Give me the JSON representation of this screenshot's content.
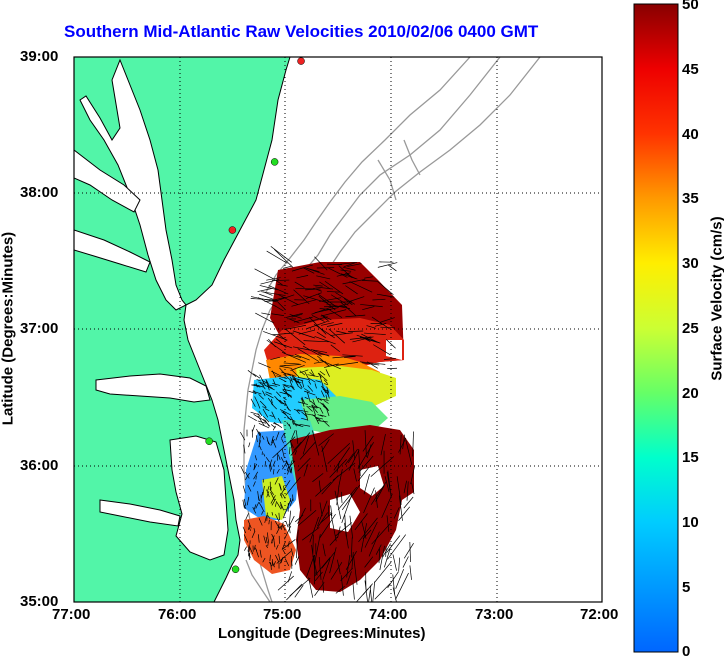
{
  "title": "Southern Mid-Atlantic Raw Velocities 2010/02/06 0400 GMT",
  "axes": {
    "xlabel": "Longitude (Degrees:Minutes)",
    "ylabel": "Latitude (Degrees:Minutes)",
    "x_ticks": [
      "77:00",
      "76:00",
      "75:00",
      "74:00",
      "73:00",
      "72:00"
    ],
    "y_ticks": [
      "39:00",
      "38:00",
      "37:00",
      "36:00",
      "35:00"
    ]
  },
  "colorbar": {
    "label": "Surface Velocity (cm/s)",
    "ticks": [
      "50",
      "45",
      "40",
      "35",
      "30",
      "25",
      "20",
      "15",
      "10",
      "5",
      "0"
    ],
    "range": [
      0,
      50
    ]
  },
  "colors": {
    "land": "#52f5a8",
    "coastline": "#000000",
    "bathymetry": "#999999",
    "title": "#0000ff",
    "grid": "#000000",
    "station_active": "#22dd22",
    "station_inactive": "#ee2222"
  },
  "map_extent": {
    "lon": [
      -77,
      -72
    ],
    "lat": [
      35,
      39
    ]
  },
  "stations": [
    {
      "lon": -74.85,
      "lat": 38.97,
      "status": "inactive"
    },
    {
      "lon": -75.1,
      "lat": 38.23,
      "status": "active"
    },
    {
      "lon": -75.5,
      "lat": 37.73,
      "status": "inactive"
    },
    {
      "lon": -75.72,
      "lat": 36.18,
      "status": "active"
    },
    {
      "lon": -75.47,
      "lat": 35.24,
      "status": "active"
    }
  ]
}
